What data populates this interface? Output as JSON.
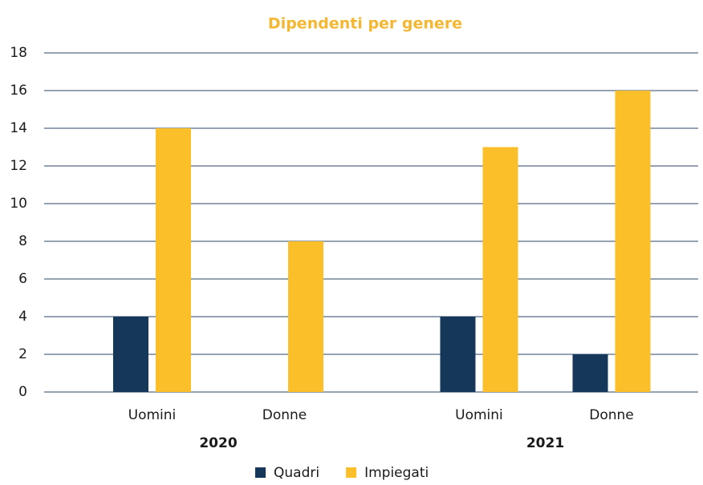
{
  "chart_data": {
    "type": "bar",
    "title": "Dipendenti per genere",
    "category_groups": [
      {
        "name": "2020",
        "categories": [
          "Uomini",
          "Donne"
        ]
      },
      {
        "name": "2021",
        "categories": [
          "Uomini",
          "Donne"
        ]
      }
    ],
    "series": [
      {
        "name": "Quadri",
        "color": "#14375a",
        "values": [
          4,
          0,
          4,
          2
        ]
      },
      {
        "name": "Impiegati",
        "color": "#fbbf2a",
        "values": [
          14,
          8,
          13,
          16
        ]
      }
    ],
    "ylim": [
      0,
      18
    ],
    "yticks": [
      0,
      2,
      4,
      6,
      8,
      10,
      12,
      14,
      16,
      18
    ],
    "grid": true,
    "legend": "bottom"
  }
}
